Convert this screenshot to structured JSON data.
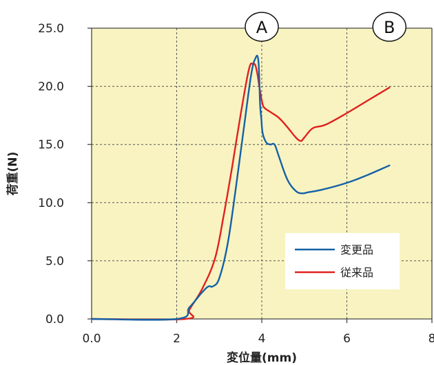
{
  "chart_data": {
    "type": "line",
    "title": "",
    "xlabel": "変位量(mm)",
    "ylabel": "荷重(N)",
    "xlim": [
      0,
      8
    ],
    "ylim": [
      0,
      25
    ],
    "xticks": [
      0,
      2,
      4,
      6,
      8
    ],
    "xtick_labels": [
      "0.0",
      "2",
      "4",
      "6",
      "8"
    ],
    "yticks": [
      0,
      5,
      10,
      15,
      20,
      25
    ],
    "ytick_labels": [
      "0.0",
      "5.0",
      "10.0",
      "15.0",
      "20.0",
      "25.0"
    ],
    "grid": true,
    "background_color": "#f8f3c0",
    "legend_position": "lower-right",
    "annotations": [
      {
        "text": "A",
        "x": 4.0,
        "y": 25
      },
      {
        "text": "B",
        "x": 7.0,
        "y": 25
      }
    ],
    "series": [
      {
        "name": "変更品",
        "color": "#1460a8",
        "x": [
          0,
          2.0,
          2.3,
          2.6,
          2.75,
          2.85,
          3.0,
          3.2,
          3.4,
          3.6,
          3.75,
          3.85,
          3.92,
          3.96,
          3.99,
          4.02,
          4.1,
          4.2,
          4.3,
          4.4,
          4.6,
          4.8,
          4.95,
          5.1,
          5.4,
          6.0,
          6.5,
          7.0
        ],
        "y": [
          0,
          0,
          1.0,
          2.3,
          2.8,
          2.8,
          3.5,
          6.5,
          11.5,
          17.0,
          21.0,
          22.4,
          22.2,
          18.5,
          17.2,
          16.0,
          15.2,
          15.0,
          15.0,
          14.0,
          12.0,
          11.0,
          10.8,
          10.9,
          11.1,
          11.7,
          12.4,
          13.2
        ]
      },
      {
        "name": "従来品",
        "color": "#e02020",
        "x": [
          0,
          2.2,
          2.3,
          2.6,
          2.9,
          3.1,
          3.3,
          3.5,
          3.7,
          3.8,
          3.85,
          3.9,
          3.95,
          4.0,
          4.05,
          4.2,
          4.4,
          4.6,
          4.8,
          4.92,
          5.0,
          5.2,
          5.5,
          6.0,
          6.5,
          7.0
        ],
        "y": [
          0,
          0,
          0.8,
          2.6,
          5.2,
          8.8,
          13.0,
          17.5,
          21.5,
          21.9,
          21.8,
          21.0,
          19.8,
          18.8,
          18.2,
          17.8,
          17.3,
          16.5,
          15.6,
          15.3,
          15.6,
          16.4,
          16.7,
          17.7,
          18.8,
          19.9
        ]
      }
    ]
  }
}
